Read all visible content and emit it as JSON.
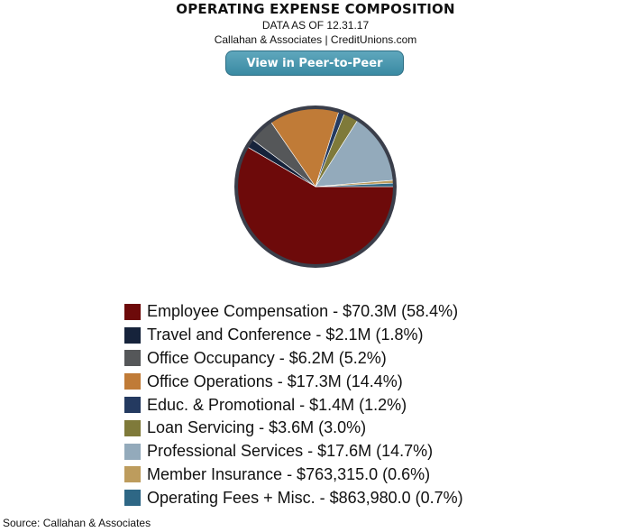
{
  "header": {
    "subtitle": "DATA AS OF 12.31.17",
    "attribution": "Callahan & Associates | CreditUnions.com",
    "button_label": "View in Peer-to-Peer"
  },
  "footer": {
    "source": "Source: Callahan & Associates"
  },
  "chart_data": {
    "type": "pie",
    "title": "OPERATING EXPENSE COMPOSITION",
    "start_angle_deg": 0,
    "slices": [
      {
        "label": "Employee Compensation - $70.3M (58.4%)",
        "value": 58.4,
        "color": "#6d0a0a"
      },
      {
        "label": "Travel and Conference - $2.1M (1.8%)",
        "value": 1.8,
        "color": "#16233b"
      },
      {
        "label": "Office Occupancy - $6.2M (5.2%)",
        "value": 5.2,
        "color": "#555759"
      },
      {
        "label": "Office Operations - $17.3M (14.4%)",
        "value": 14.4,
        "color": "#c07b37"
      },
      {
        "label": "Educ. & Promotional - $1.4M (1.2%)",
        "value": 1.2,
        "color": "#243a60"
      },
      {
        "label": "Loan Servicing - $3.6M (3.0%)",
        "value": 3.0,
        "color": "#7f7a3a"
      },
      {
        "label": "Professional Services - $17.6M (14.7%)",
        "value": 14.7,
        "color": "#93aabb"
      },
      {
        "label": "Member Insurance - $763,315.0 (0.6%)",
        "value": 0.6,
        "color": "#bd9c5d"
      },
      {
        "label": "Operating Fees + Misc. - $863,980.0 (0.7%)",
        "value": 0.7,
        "color": "#2e6785"
      }
    ],
    "border_color": "#3a3e4a"
  }
}
